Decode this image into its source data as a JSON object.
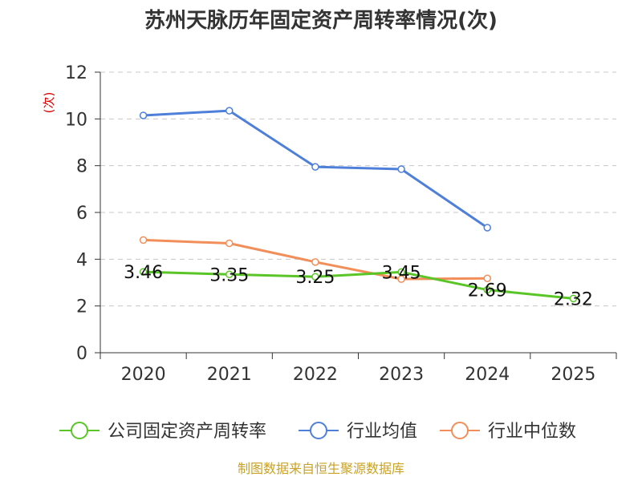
{
  "chart_data": {
    "type": "line",
    "title": "苏州天脉历年固定资产周转率情况(次)",
    "ylabel": "(次)",
    "ylim": [
      0,
      12
    ],
    "yticks": [
      0,
      2,
      4,
      6,
      8,
      10,
      12
    ],
    "categories": [
      "2020",
      "2021",
      "2022",
      "2023",
      "2024",
      "2025"
    ],
    "series": [
      {
        "name": "公司固定资产周转率",
        "color": "#5ac527",
        "values": [
          3.46,
          3.35,
          3.25,
          3.45,
          2.69,
          2.32
        ],
        "labels": [
          "3.46",
          "3.35",
          "3.25",
          "3.45",
          "2.69",
          "2.32"
        ]
      },
      {
        "name": "行业均值",
        "color": "#4e7fd9",
        "values": [
          10.15,
          10.35,
          7.95,
          7.85,
          5.35,
          null
        ]
      },
      {
        "name": "行业中位数",
        "color": "#f28e59",
        "values": [
          4.82,
          4.68,
          3.88,
          3.15,
          3.18,
          null
        ]
      }
    ],
    "grid": true,
    "legend_position": "bottom"
  },
  "footer": {
    "source": "制图数据来自恒生聚源数据库"
  }
}
